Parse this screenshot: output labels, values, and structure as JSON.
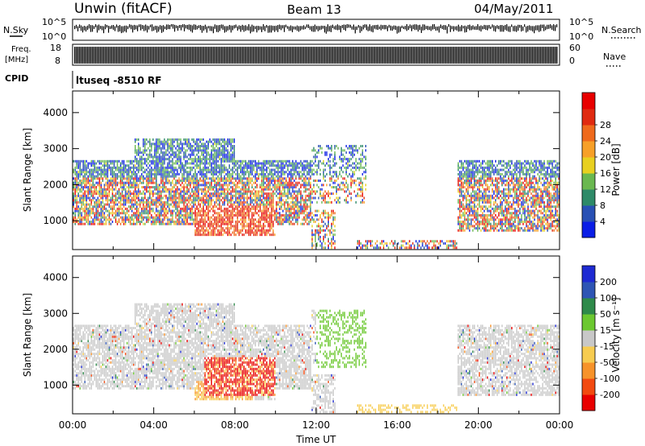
{
  "header": {
    "station": "Unwin (fitACF)",
    "beam": "Beam 13",
    "date": "04/May/2011"
  },
  "top_panel": {
    "nsky_label": "N.Sky",
    "nsearch_label": "N.Search",
    "freq_label_line1": "Freq.",
    "freq_label_line2": "[MHz]",
    "nave_label": "Nave",
    "cpid_label": "CPID",
    "cpid_value": "ltuseq -8510 RF",
    "noise_tick_top": "10^5",
    "noise_tick_bottom": "10^0",
    "freq_tick_top": "18",
    "freq_tick_bottom": "8",
    "nave_tick_top": "60",
    "nave_tick_bottom": "0"
  },
  "chart_data": [
    {
      "type": "heatmap",
      "name": "power",
      "ylabel": "Slant Range [km]",
      "xlabel": "",
      "yticks": [
        "1000",
        "2000",
        "3000",
        "4000"
      ],
      "ylim": [
        200,
        4600
      ],
      "xlim": [
        0,
        24
      ],
      "colorbar_label": "Power [dB]",
      "colorbar_ticks": [
        "4",
        "8",
        "12",
        "16",
        "20",
        "24",
        "28"
      ],
      "colorbar_colors": [
        "#0a1ee6",
        "#2850b4",
        "#2e8a68",
        "#6ab850",
        "#e8d020",
        "#f7a028",
        "#ef6a1c",
        "#e02a10",
        "#e80000"
      ]
    },
    {
      "type": "heatmap",
      "name": "velocity",
      "ylabel": "Slant Range [km]",
      "xlabel": "Time UT",
      "yticks": [
        "1000",
        "2000",
        "3000",
        "4000"
      ],
      "xticks": [
        "00:00",
        "04:00",
        "08:00",
        "12:00",
        "16:00",
        "20:00",
        "00:00"
      ],
      "ylim": [
        200,
        4600
      ],
      "xlim": [
        0,
        24
      ],
      "colorbar_label": "Velocity [m s⁻¹]",
      "colorbar_ticks": [
        "-200",
        "-100",
        "-50",
        "-15",
        "15",
        "50",
        "100",
        "200"
      ],
      "colorbar_colors": [
        "#e80000",
        "#f24a10",
        "#f7932a",
        "#f7cc50",
        "#c8c8c8",
        "#6cc830",
        "#2e8a4a",
        "#2e55b4",
        "#1e2ad2"
      ]
    }
  ]
}
